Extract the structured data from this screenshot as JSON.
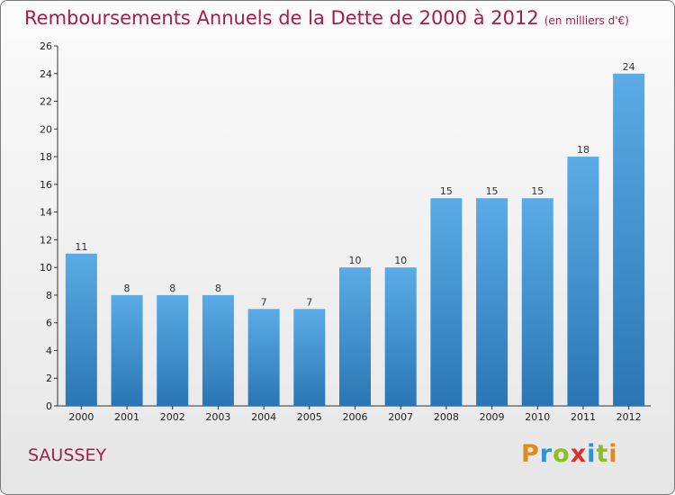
{
  "chart_data": {
    "type": "bar",
    "title": "Remboursements Annuels de la Dette de 2000 à 2012",
    "subtitle": "(en milliers d'€)",
    "categories": [
      "2000",
      "2001",
      "2002",
      "2003",
      "2004",
      "2005",
      "2006",
      "2007",
      "2008",
      "2009",
      "2010",
      "2011",
      "2012"
    ],
    "values": [
      11,
      8,
      8,
      8,
      7,
      7,
      10,
      10,
      15,
      15,
      15,
      18,
      24
    ],
    "ylim": [
      0,
      26
    ],
    "yticks": [
      0,
      2,
      4,
      6,
      8,
      10,
      12,
      14,
      16,
      18,
      20,
      22,
      24,
      26
    ],
    "grid": false,
    "bar_color_top": "#5aabe6",
    "bar_color_bottom": "#2a76b4"
  },
  "footer": {
    "place": "SAUSSEY",
    "logo": {
      "p": "P",
      "r": "r",
      "o": "o",
      "x": "x",
      "i1": "i",
      "t": "t",
      "i2": "i"
    }
  }
}
